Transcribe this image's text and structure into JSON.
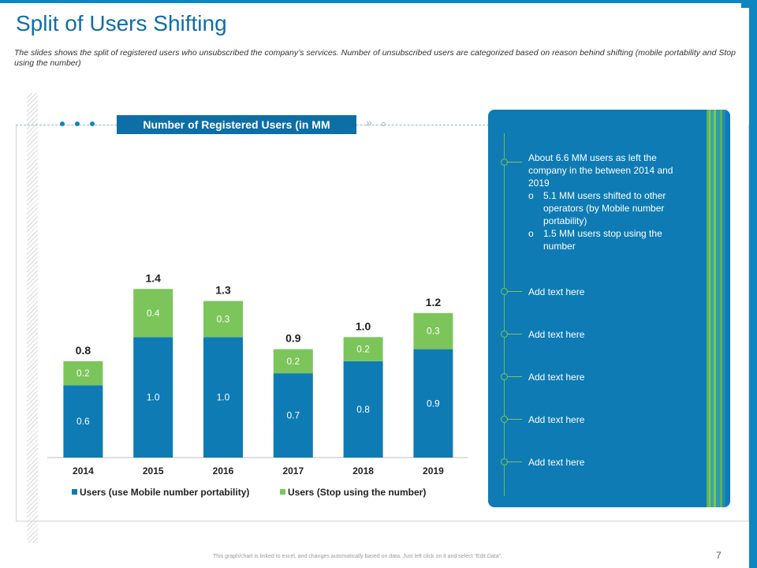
{
  "title": "Split of Users Shifting",
  "subtitle": "The slides shows the split of registered users who unsubscribed the company’s services. Number of unsubscribed users are categorized based on reason behind shifting (mobile portability and Stop using the number)",
  "chart_header": "Number of Registered Users (in MM",
  "chart_data": {
    "type": "bar",
    "stacked": true,
    "categories": [
      "2014",
      "2015",
      "2016",
      "2017",
      "2018",
      "2019"
    ],
    "series": [
      {
        "name": "Users  (use Mobile number portability)",
        "values": [
          0.6,
          1.0,
          1.0,
          0.7,
          0.8,
          0.9
        ],
        "color": "#0e7bb4"
      },
      {
        "name": "Users  (Stop using the number)",
        "values": [
          0.2,
          0.4,
          0.3,
          0.2,
          0.2,
          0.3
        ],
        "color": "#7cc55b"
      }
    ],
    "totals": [
      "0.8",
      "1.4",
      "1.3",
      "0.9",
      "1.0",
      "1.2"
    ],
    "segment_labels": [
      [
        "0.6",
        "1.0",
        "1.0",
        "0.7",
        "0.8",
        "0.9"
      ],
      [
        "0.2",
        "0.4",
        "0.3",
        "0.2",
        "0.2",
        "0.3"
      ]
    ],
    "ylim": [
      0,
      1.5
    ],
    "legend": "bottom"
  },
  "panel": {
    "intro": "About 6.6 MM users as left the company in the between 2014 and 2019",
    "bullet_marker": "o",
    "bullets": [
      "5.1 MM users shifted to other operators (by Mobile number portability)",
      "1.5 MM users stop using the number"
    ],
    "items": [
      "Add text here",
      "Add text here",
      "Add text here",
      "Add text here",
      "Add text here"
    ]
  },
  "colors": {
    "accent": "#0e7bb4",
    "green": "#7cc55b",
    "title": "#0e6ea6"
  },
  "footer": "This graph/chart is linked to excel, and changes automatically based on data. Just left click on it and select “Edit Data”.",
  "page_number": "7"
}
